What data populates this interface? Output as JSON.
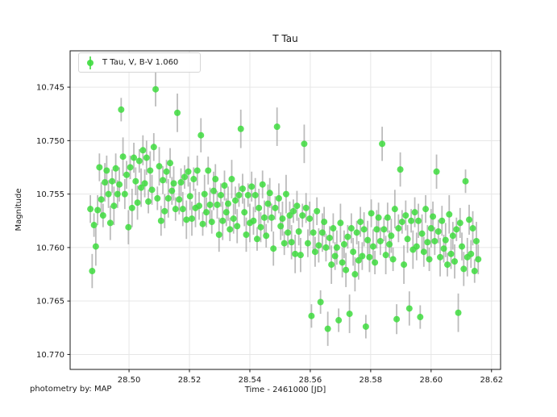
{
  "title": "T Tau",
  "footer": "photometry by: MAP",
  "axes": {
    "xlabel": "Time - 2461000 [JD]",
    "ylabel": "Magnitude",
    "xtick_labels": [
      "28.50",
      "28.52",
      "28.54",
      "28.56",
      "28.58",
      "28.60",
      "28.62"
    ],
    "ytick_labels": [
      "10.745",
      "10.750",
      "10.755",
      "10.760",
      "10.765",
      "10.770"
    ]
  },
  "legend": {
    "label": "T Tau, V, B-V 1.060"
  },
  "colors": {
    "marker": "#3edc3e",
    "errorbar": "#a0a0a0",
    "grid": "#e6e6e6",
    "spine": "#1a1a1a",
    "text": "#1a1a1a",
    "legend_border": "#d5d5d5",
    "background": "#ffffff"
  },
  "chart_data": {
    "type": "scatter",
    "title": "T Tau",
    "xlabel": "Time - 2461000 [JD]",
    "ylabel": "Magnitude",
    "legend_position": "upper left",
    "grid": true,
    "error_bars": true,
    "y_axis_inverted": true,
    "xlim": [
      28.4805,
      28.623
    ],
    "ylim": [
      10.7714,
      10.7416
    ],
    "xticks": [
      28.5,
      28.52,
      28.54,
      28.56,
      28.58,
      28.6,
      28.62
    ],
    "yticks": [
      10.745,
      10.75,
      10.755,
      10.76,
      10.765,
      10.77
    ],
    "series": [
      {
        "name": "T Tau, V, B-V 1.060",
        "marker": "circle",
        "marker_size": 8,
        "marker_color": "#3edc3e",
        "errorbar_color": "#a0a0a0",
        "points_format": [
          "time_jd_minus_2461000",
          "magnitude",
          "magnitude_error"
        ],
        "points": [
          [
            28.4872,
            10.7564,
            0.0013
          ],
          [
            28.4878,
            10.7622,
            0.0016
          ],
          [
            28.4884,
            10.7579,
            0.0011
          ],
          [
            28.489,
            10.7599,
            0.0018
          ],
          [
            28.4896,
            10.7565,
            0.0014
          ],
          [
            28.4902,
            10.7525,
            0.0013
          ],
          [
            28.4908,
            10.7555,
            0.0016
          ],
          [
            28.4914,
            10.757,
            0.0011
          ],
          [
            28.492,
            10.7539,
            0.0018
          ],
          [
            28.4926,
            10.7528,
            0.0014
          ],
          [
            28.4932,
            10.755,
            0.0013
          ],
          [
            28.4938,
            10.7577,
            0.0016
          ],
          [
            28.4944,
            10.7538,
            0.0011
          ],
          [
            28.495,
            10.7561,
            0.0018
          ],
          [
            28.4956,
            10.7526,
            0.0014
          ],
          [
            28.4962,
            10.755,
            0.0013
          ],
          [
            28.4968,
            10.7541,
            0.0016
          ],
          [
            28.4974,
            10.7471,
            0.0011
          ],
          [
            28.498,
            10.7515,
            0.0018
          ],
          [
            28.4986,
            10.755,
            0.0014
          ],
          [
            28.4992,
            10.7532,
            0.0013
          ],
          [
            28.4998,
            10.7581,
            0.0016
          ],
          [
            28.5004,
            10.7525,
            0.0011
          ],
          [
            28.501,
            10.7563,
            0.0018
          ],
          [
            28.5016,
            10.7516,
            0.0014
          ],
          [
            28.5022,
            10.7538,
            0.0013
          ],
          [
            28.5028,
            10.7558,
            0.0016
          ],
          [
            28.5034,
            10.7519,
            0.0011
          ],
          [
            28.504,
            10.7544,
            0.0018
          ],
          [
            28.5046,
            10.7509,
            0.0014
          ],
          [
            28.5052,
            10.754,
            0.0013
          ],
          [
            28.5058,
            10.7516,
            0.0016
          ],
          [
            28.5064,
            10.7557,
            0.0011
          ],
          [
            28.507,
            10.7528,
            0.0018
          ],
          [
            28.5076,
            10.7546,
            0.0014
          ],
          [
            28.5082,
            10.7506,
            0.0013
          ],
          [
            28.5088,
            10.7452,
            0.0016
          ],
          [
            28.5094,
            10.7554,
            0.0011
          ],
          [
            28.51,
            10.7524,
            0.0018
          ],
          [
            28.5106,
            10.7575,
            0.0014
          ],
          [
            28.5112,
            10.7537,
            0.0013
          ],
          [
            28.5118,
            10.7566,
            0.0016
          ],
          [
            28.5124,
            10.7529,
            0.0011
          ],
          [
            28.513,
            10.7554,
            0.0018
          ],
          [
            28.5136,
            10.7521,
            0.0014
          ],
          [
            28.5142,
            10.7547,
            0.0013
          ],
          [
            28.5148,
            10.754,
            0.0016
          ],
          [
            28.5154,
            10.7564,
            0.0011
          ],
          [
            28.516,
            10.7474,
            0.0018
          ],
          [
            28.5166,
            10.7555,
            0.0014
          ],
          [
            28.5172,
            10.7539,
            0.0013
          ],
          [
            28.5178,
            10.7564,
            0.0016
          ],
          [
            28.5184,
            10.7534,
            0.0011
          ],
          [
            28.519,
            10.7574,
            0.0018
          ],
          [
            28.5196,
            10.7529,
            0.0014
          ],
          [
            28.5202,
            10.7552,
            0.0013
          ],
          [
            28.5208,
            10.7573,
            0.0016
          ],
          [
            28.5214,
            10.7536,
            0.0011
          ],
          [
            28.522,
            10.7563,
            0.0018
          ],
          [
            28.5226,
            10.7528,
            0.0014
          ],
          [
            28.5232,
            10.7561,
            0.0013
          ],
          [
            28.5238,
            10.7495,
            0.0016
          ],
          [
            28.5244,
            10.7578,
            0.0011
          ],
          [
            28.525,
            10.755,
            0.0018
          ],
          [
            28.5256,
            10.7567,
            0.0014
          ],
          [
            28.5262,
            10.7528,
            0.0013
          ],
          [
            28.5268,
            10.756,
            0.0016
          ],
          [
            28.5274,
            10.7576,
            0.0011
          ],
          [
            28.528,
            10.7547,
            0.0018
          ],
          [
            28.5286,
            10.7536,
            0.0014
          ],
          [
            28.5292,
            10.756,
            0.0013
          ],
          [
            28.5298,
            10.7588,
            0.0016
          ],
          [
            28.5304,
            10.7551,
            0.0011
          ],
          [
            28.531,
            10.7575,
            0.0018
          ],
          [
            28.5316,
            10.7542,
            0.0014
          ],
          [
            28.5322,
            10.7567,
            0.0013
          ],
          [
            28.5328,
            10.7559,
            0.0016
          ],
          [
            28.5334,
            10.7583,
            0.0011
          ],
          [
            28.534,
            10.7536,
            0.0018
          ],
          [
            28.5346,
            10.7573,
            0.0014
          ],
          [
            28.5352,
            10.7556,
            0.0013
          ],
          [
            28.5358,
            10.758,
            0.0016
          ],
          [
            28.5364,
            10.7551,
            0.0011
          ],
          [
            28.537,
            10.7489,
            0.0018
          ],
          [
            28.5376,
            10.7545,
            0.0014
          ],
          [
            28.5382,
            10.7567,
            0.0013
          ],
          [
            28.5388,
            10.7588,
            0.0016
          ],
          [
            28.5394,
            10.7551,
            0.0011
          ],
          [
            28.54,
            10.7577,
            0.0018
          ],
          [
            28.5406,
            10.7543,
            0.0014
          ],
          [
            28.5412,
            10.7575,
            0.0013
          ],
          [
            28.5418,
            10.7551,
            0.0016
          ],
          [
            28.5424,
            10.7592,
            0.0011
          ],
          [
            28.543,
            10.7563,
            0.0018
          ],
          [
            28.5436,
            10.7581,
            0.0014
          ],
          [
            28.5442,
            10.7541,
            0.0013
          ],
          [
            28.5448,
            10.7572,
            0.0016
          ],
          [
            28.5454,
            10.7589,
            0.0011
          ],
          [
            28.546,
            10.7559,
            0.0018
          ],
          [
            28.5466,
            10.7549,
            0.0014
          ],
          [
            28.5472,
            10.7572,
            0.0013
          ],
          [
            28.5478,
            10.7601,
            0.0016
          ],
          [
            28.5484,
            10.7563,
            0.0011
          ],
          [
            28.549,
            10.7487,
            0.0018
          ],
          [
            28.5496,
            10.7554,
            0.0014
          ],
          [
            28.5502,
            10.758,
            0.0013
          ],
          [
            28.5508,
            10.7573,
            0.0016
          ],
          [
            28.5514,
            10.7596,
            0.0011
          ],
          [
            28.552,
            10.755,
            0.0018
          ],
          [
            28.5526,
            10.7586,
            0.0014
          ],
          [
            28.5532,
            10.757,
            0.0013
          ],
          [
            28.5538,
            10.7595,
            0.0016
          ],
          [
            28.5544,
            10.7566,
            0.0011
          ],
          [
            28.555,
            10.7606,
            0.0018
          ],
          [
            28.5556,
            10.7561,
            0.0014
          ],
          [
            28.5562,
            10.7585,
            0.0013
          ],
          [
            28.5568,
            10.7607,
            0.0016
          ],
          [
            28.5574,
            10.757,
            0.0011
          ],
          [
            28.558,
            10.7503,
            0.0018
          ],
          [
            28.5586,
            10.7563,
            0.0014
          ],
          [
            28.5592,
            10.7596,
            0.0013
          ],
          [
            28.5598,
            10.7573,
            0.0016
          ],
          [
            28.5604,
            10.7664,
            0.0011
          ],
          [
            28.561,
            10.7586,
            0.0018
          ],
          [
            28.5616,
            10.7604,
            0.0014
          ],
          [
            28.5622,
            10.7566,
            0.0013
          ],
          [
            28.5628,
            10.7598,
            0.0016
          ],
          [
            28.5634,
            10.7651,
            0.0011
          ],
          [
            28.564,
            10.7586,
            0.0018
          ],
          [
            28.5646,
            10.7576,
            0.0014
          ],
          [
            28.5652,
            10.76,
            0.0013
          ],
          [
            28.5658,
            10.7676,
            0.0016
          ],
          [
            28.5664,
            10.7591,
            0.0011
          ],
          [
            28.567,
            10.7616,
            0.0018
          ],
          [
            28.5676,
            10.7582,
            0.0014
          ],
          [
            28.5682,
            10.7608,
            0.0013
          ],
          [
            28.5688,
            10.76,
            0.0016
          ],
          [
            28.5694,
            10.7668,
            0.0011
          ],
          [
            28.57,
            10.7577,
            0.0018
          ],
          [
            28.5706,
            10.7614,
            0.0014
          ],
          [
            28.5712,
            10.7597,
            0.0013
          ],
          [
            28.5718,
            10.7621,
            0.0016
          ],
          [
            28.5724,
            10.759,
            0.0011
          ],
          [
            28.573,
            10.7662,
            0.0018
          ],
          [
            28.5736,
            10.7582,
            0.0014
          ],
          [
            28.5742,
            10.7604,
            0.0013
          ],
          [
            28.5748,
            10.7625,
            0.0016
          ],
          [
            28.5754,
            10.7586,
            0.0011
          ],
          [
            28.576,
            10.7612,
            0.0018
          ],
          [
            28.5766,
            10.7576,
            0.0014
          ],
          [
            28.5772,
            10.7608,
            0.0013
          ],
          [
            28.5778,
            10.7583,
            0.0016
          ],
          [
            28.5784,
            10.7674,
            0.0011
          ],
          [
            28.579,
            10.7593,
            0.0018
          ],
          [
            28.5796,
            10.7609,
            0.0014
          ],
          [
            28.5802,
            10.7568,
            0.0013
          ],
          [
            28.5808,
            10.7599,
            0.0016
          ],
          [
            28.5814,
            10.7614,
            0.0011
          ],
          [
            28.582,
            10.7583,
            0.0018
          ],
          [
            28.5826,
            10.7572,
            0.0014
          ],
          [
            28.5832,
            10.7594,
            0.0013
          ],
          [
            28.5838,
            10.7503,
            0.0016
          ],
          [
            28.5844,
            10.7583,
            0.0011
          ],
          [
            28.585,
            10.7607,
            0.0018
          ],
          [
            28.5856,
            10.7572,
            0.0014
          ],
          [
            28.5862,
            10.7597,
            0.0013
          ],
          [
            28.5868,
            10.7589,
            0.0016
          ],
          [
            28.5874,
            10.7611,
            0.0011
          ],
          [
            28.588,
            10.7564,
            0.0018
          ],
          [
            28.5886,
            10.7667,
            0.0014
          ],
          [
            28.5892,
            10.7582,
            0.0013
          ],
          [
            28.5898,
            10.7527,
            0.0016
          ],
          [
            28.5904,
            10.7576,
            0.0011
          ],
          [
            28.591,
            10.7616,
            0.0018
          ],
          [
            28.5916,
            10.757,
            0.0014
          ],
          [
            28.5922,
            10.7592,
            0.0013
          ],
          [
            28.5928,
            10.7657,
            0.0016
          ],
          [
            28.5934,
            10.7575,
            0.0011
          ],
          [
            28.594,
            10.7602,
            0.0018
          ],
          [
            28.5946,
            10.7567,
            0.0014
          ],
          [
            28.5952,
            10.7599,
            0.0013
          ],
          [
            28.5958,
            10.7575,
            0.0016
          ],
          [
            28.5964,
            10.7665,
            0.0011
          ],
          [
            28.597,
            10.7587,
            0.0018
          ],
          [
            28.5976,
            10.7604,
            0.0014
          ],
          [
            28.5982,
            10.7564,
            0.0013
          ],
          [
            28.5988,
            10.7595,
            0.0016
          ],
          [
            28.5994,
            10.7611,
            0.0011
          ],
          [
            28.6,
            10.7582,
            0.0018
          ],
          [
            28.6006,
            10.7571,
            0.0014
          ],
          [
            28.6012,
            10.7594,
            0.0013
          ],
          [
            28.6018,
            10.7529,
            0.0016
          ],
          [
            28.6024,
            10.7585,
            0.0011
          ],
          [
            28.603,
            10.7609,
            0.0018
          ],
          [
            28.6036,
            10.7575,
            0.0014
          ],
          [
            28.6042,
            10.7601,
            0.0013
          ],
          [
            28.6048,
            10.7593,
            0.0016
          ],
          [
            28.6054,
            10.7616,
            0.0011
          ],
          [
            28.606,
            10.7569,
            0.0018
          ],
          [
            28.6066,
            10.7606,
            0.0014
          ],
          [
            28.6072,
            10.7589,
            0.0013
          ],
          [
            28.6078,
            10.7613,
            0.0016
          ],
          [
            28.6084,
            10.7583,
            0.0011
          ],
          [
            28.609,
            10.7661,
            0.0018
          ],
          [
            28.6096,
            10.7577,
            0.0014
          ],
          [
            28.6102,
            10.7599,
            0.0013
          ],
          [
            28.6108,
            10.762,
            0.0016
          ],
          [
            28.6114,
            10.7538,
            0.0011
          ],
          [
            28.612,
            10.7609,
            0.0018
          ],
          [
            28.6126,
            10.7574,
            0.0014
          ],
          [
            28.6132,
            10.7606,
            0.0013
          ],
          [
            28.6138,
            10.7582,
            0.0016
          ],
          [
            28.6144,
            10.7622,
            0.0011
          ],
          [
            28.615,
            10.7594,
            0.0018
          ],
          [
            28.6156,
            10.7611,
            0.0014
          ]
        ]
      }
    ]
  }
}
